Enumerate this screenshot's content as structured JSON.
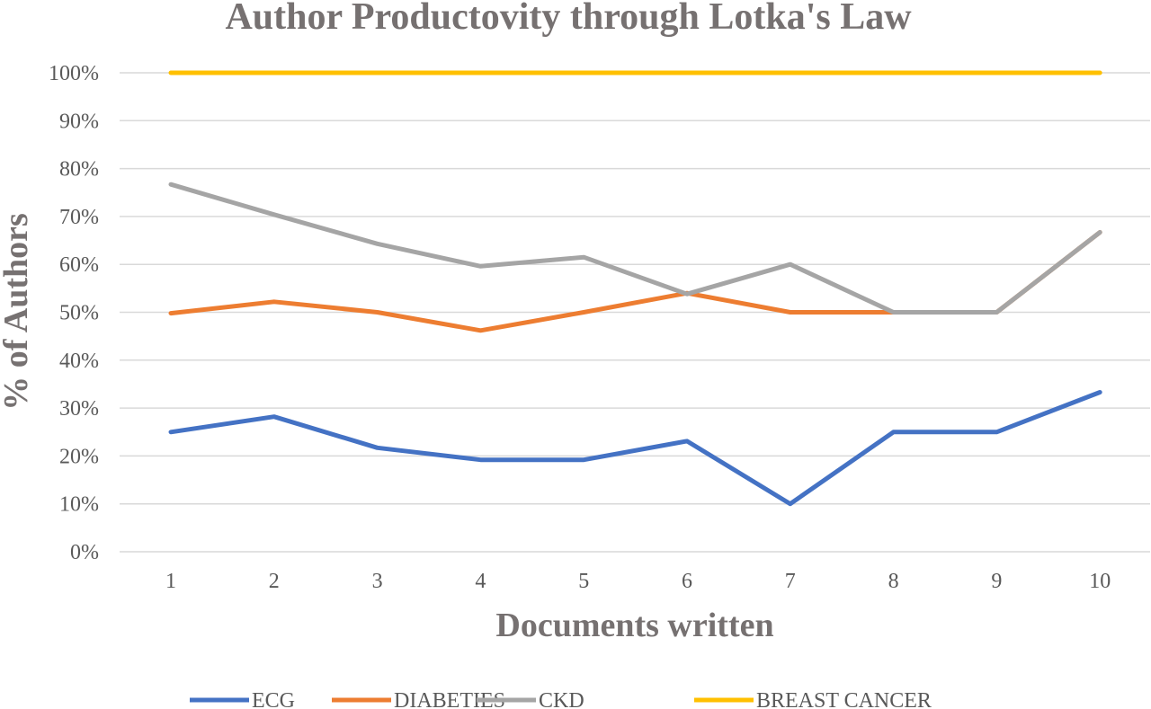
{
  "chart_data": {
    "type": "line",
    "title": "Author Productovity through Lotka's Law",
    "xlabel": "Documents written",
    "ylabel": "% of Authors",
    "x": [
      1,
      2,
      3,
      4,
      5,
      6,
      7,
      8,
      9,
      10
    ],
    "x_tick_labels": [
      "1",
      "2",
      "3",
      "4",
      "5",
      "6",
      "7",
      "8",
      "9",
      "10"
    ],
    "y_tick_labels": [
      "0%",
      "10%",
      "20%",
      "30%",
      "40%",
      "50%",
      "60%",
      "70%",
      "80%",
      "90%",
      "100%"
    ],
    "ylim": [
      0,
      100
    ],
    "grid": true,
    "legend_position": "bottom",
    "series": [
      {
        "name": "ECG",
        "color": "#4472c4",
        "values": [
          25,
          28.2,
          21.7,
          19.2,
          19.2,
          23.1,
          10,
          25,
          25,
          33.3
        ]
      },
      {
        "name": "DIABETIES",
        "color": "#ed7d31",
        "values": [
          49.8,
          52.2,
          50,
          46.2,
          50,
          54,
          50,
          50,
          50,
          66.7
        ]
      },
      {
        "name": "CKD",
        "color": "#a5a5a5",
        "values": [
          76.7,
          70.4,
          64.3,
          59.6,
          61.5,
          53.8,
          60,
          50,
          50,
          66.7
        ]
      },
      {
        "name": "BREAST CANCER",
        "color": "#ffc000",
        "values": [
          100,
          100,
          100,
          100,
          100,
          100,
          100,
          100,
          100,
          100
        ]
      }
    ]
  }
}
